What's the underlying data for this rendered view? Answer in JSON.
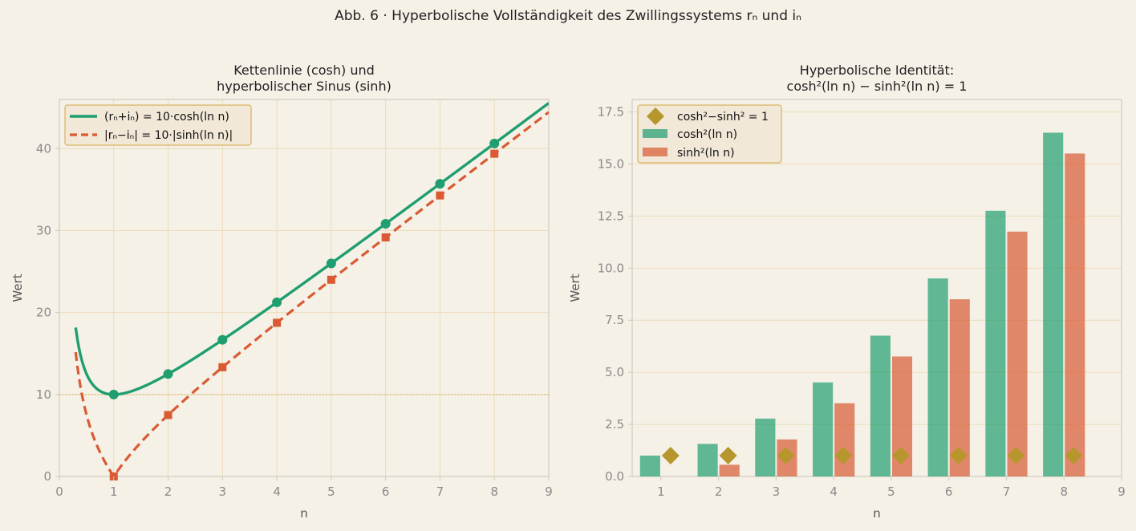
{
  "figure": {
    "title": "Abb. 6 · Hyperbolische Vollständigkeit des Zwillingssystems rₙ und iₙ"
  },
  "colors": {
    "background": "#f5f1e7",
    "cosh": "#1f9e70",
    "sinh": "#d95a33",
    "diamond": "#b8962e",
    "grid": "#ecdcb8",
    "reference_line": "#d9b25f",
    "axis": "#cfcac0",
    "tick_text": "#8a8a8a"
  },
  "chart_data": [
    {
      "type": "line",
      "title_lines": [
        "Kettenlinie (cosh) und",
        "hyperbolischer Sinus (sinh)"
      ],
      "xlabel": "n",
      "ylabel": "Wert",
      "xlim": [
        0,
        9
      ],
      "ylim": [
        0,
        46
      ],
      "xticks": [
        0,
        1,
        2,
        3,
        4,
        5,
        6,
        7,
        8,
        9
      ],
      "yticks": [
        0,
        10,
        20,
        30,
        40
      ],
      "grid": true,
      "legend_position": "top-left",
      "reference_line_y": 10,
      "curve_x_range": [
        0.3,
        9
      ],
      "series": [
        {
          "name": "(rₙ+iₙ) = 10·cosh(ln n)",
          "style": "solid",
          "marker": "circle",
          "x": [
            1,
            2,
            3,
            4,
            5,
            6,
            7,
            8
          ],
          "y": [
            10.0,
            12.5,
            16.67,
            21.25,
            26.0,
            30.83,
            35.71,
            40.63
          ]
        },
        {
          "name": "|rₙ−iₙ| = 10·|sinh(ln n)|",
          "style": "dashed",
          "marker": "square",
          "x": [
            1,
            2,
            3,
            4,
            5,
            6,
            7,
            8
          ],
          "y": [
            0.0,
            7.5,
            13.33,
            18.75,
            24.0,
            29.17,
            34.29,
            39.38
          ]
        }
      ]
    },
    {
      "type": "bar",
      "title_lines": [
        "Hyperbolische Identität:",
        "cosh²(ln n) − sinh²(ln n) = 1"
      ],
      "xlabel": "n",
      "ylabel": "Wert",
      "xlim": [
        0.5,
        9
      ],
      "ylim": [
        0,
        18.1
      ],
      "xticks": [
        1,
        2,
        3,
        4,
        5,
        6,
        7,
        8,
        9
      ],
      "yticks": [
        0.0,
        2.5,
        5.0,
        7.5,
        10.0,
        12.5,
        15.0,
        17.5
      ],
      "ytick_labels": [
        "0.0",
        "2.5",
        "5.0",
        "7.5",
        "10.0",
        "12.5",
        "15.0",
        "17.5"
      ],
      "grid": true,
      "legend_position": "top-left",
      "categories": [
        1,
        2,
        3,
        4,
        5,
        6,
        7,
        8
      ],
      "series": [
        {
          "name": "cosh²−sinh² = 1",
          "kind": "diamond",
          "values": [
            1,
            1,
            1,
            1,
            1,
            1,
            1,
            1
          ]
        },
        {
          "name": "cosh²(ln n)",
          "kind": "bar",
          "values": [
            1.0,
            1.5625,
            2.778,
            4.516,
            6.76,
            9.507,
            12.755,
            16.504
          ]
        },
        {
          "name": "sinh²(ln n)",
          "kind": "bar",
          "values": [
            0.0,
            0.5625,
            1.778,
            3.516,
            5.76,
            8.507,
            11.755,
            15.504
          ]
        }
      ]
    }
  ]
}
